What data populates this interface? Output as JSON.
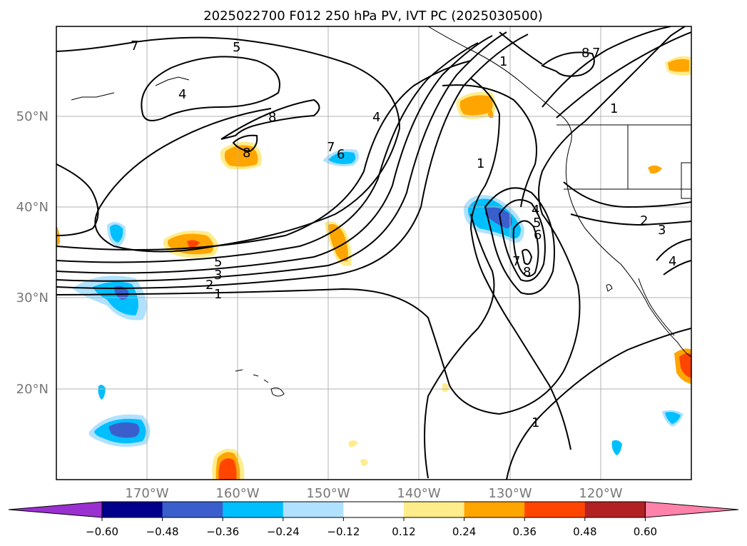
{
  "title": "2025022700 F012 250 hPa PV, IVT PC (2025030500)",
  "latitude_labels": [
    "50°N",
    "40°N",
    "30°N",
    "20°N"
  ],
  "longitude_labels": [
    "170°W",
    "160°W",
    "150°W",
    "140°W",
    "130°W",
    "120°W"
  ],
  "contour_labels": [
    "7",
    "5",
    "4",
    "8",
    "8",
    "7",
    "6",
    "4",
    "1",
    "8",
    "7",
    "4",
    "5",
    "6",
    "7",
    "8",
    "5",
    "3",
    "2",
    "1",
    "1",
    "2",
    "3",
    "4",
    "1",
    "1"
  ],
  "colorbar": {
    "ticks": [
      "−0.60",
      "−0.48",
      "−0.36",
      "−0.24",
      "−0.12",
      "0.12",
      "0.24",
      "0.36",
      "0.48",
      "0.60"
    ],
    "colors": [
      "#9b30d0",
      "#00008b",
      "#3a5fcd",
      "#00bfff",
      "#b0e2ff",
      "#ffffff",
      "#ffec8b",
      "#ffa500",
      "#ff4500",
      "#b22222",
      "#ff82ab"
    ]
  },
  "map": {
    "region": "North Pacific / North America west coast",
    "gridlines": true,
    "fill_colors": {
      "light_blue": "#b0e2ff",
      "blue": "#00bfff",
      "dark_blue": "#3a5fcd",
      "yellow": "#ffec8b",
      "orange": "#ffa500",
      "red_orange": "#ff4500"
    }
  }
}
